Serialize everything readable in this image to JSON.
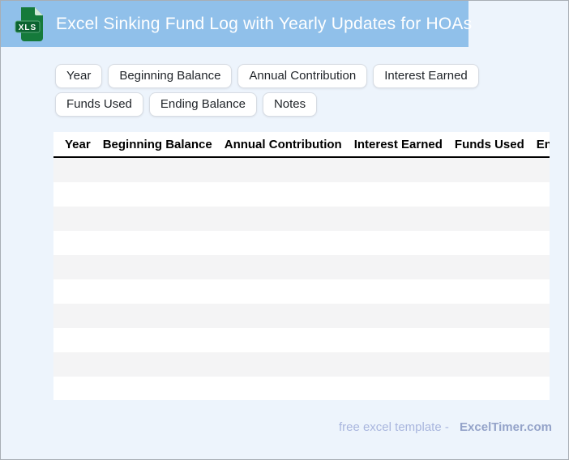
{
  "header": {
    "title": "Excel Sinking Fund Log with Yearly Updates for HOAs",
    "file_icon_label": "XLS"
  },
  "chips": [
    "Year",
    "Beginning Balance",
    "Annual Contribution",
    "Interest Earned",
    "Funds Used",
    "Ending Balance",
    "Notes"
  ],
  "table": {
    "columns": [
      "Year",
      "Beginning Balance",
      "Annual Contribution",
      "Interest Earned",
      "Funds Used",
      "Ending Balance"
    ],
    "empty_row_count": 10
  },
  "footer": {
    "prefix": "free excel template -",
    "brand": "ExcelTimer.com"
  },
  "colors": {
    "header_bg": "#90c0ea",
    "page_bg": "#edf4fc",
    "stripe": "#f4f4f5",
    "chip_border": "#d7dce3",
    "icon_green": "#157a3b",
    "icon_badge_green": "#0b6330",
    "footer_text": "#a9b6de",
    "footer_brand": "#94a3c9"
  }
}
